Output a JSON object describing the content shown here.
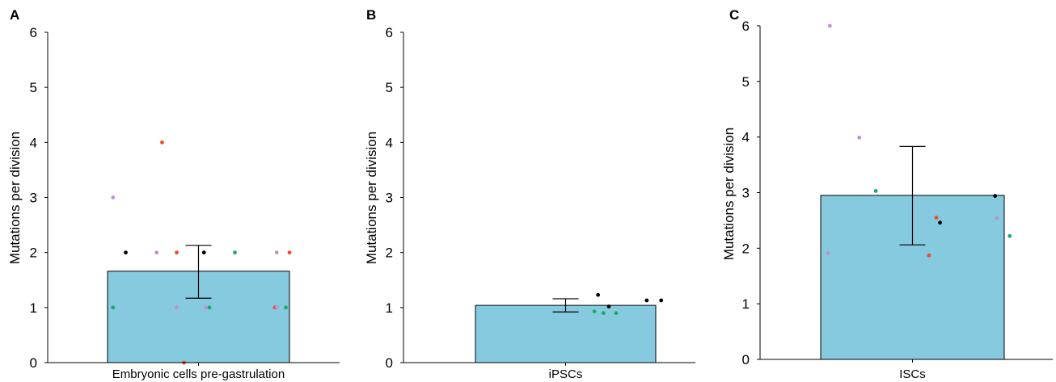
{
  "colors": {
    "bar_fill": "#86CAE0",
    "black": "#000000",
    "green": "#1AAA68",
    "red": "#F04A24",
    "purple": "#C08FD6"
  },
  "chart_data": [
    {
      "type": "bar",
      "panel_label": "A",
      "categories": [
        "Embryonic cells pre-gastrulation"
      ],
      "values": [
        1.66
      ],
      "error": {
        "low": 1.17,
        "high": 2.13
      },
      "ylabel": "Mutations per division",
      "ylim": [
        0,
        6
      ],
      "yticks": [
        "0",
        "1",
        "2",
        "3",
        "4",
        "5",
        "6"
      ],
      "grid": false,
      "points": [
        {
          "x": 0.03,
          "y": 3,
          "color": "purple"
        },
        {
          "x": 0.03,
          "y": 1,
          "color": "green"
        },
        {
          "x": 0.1,
          "y": 2,
          "color": "black"
        },
        {
          "x": 0.27,
          "y": 2,
          "color": "purple"
        },
        {
          "x": 0.3,
          "y": 4,
          "color": "red"
        },
        {
          "x": 0.38,
          "y": 2,
          "color": "red"
        },
        {
          "x": 0.38,
          "y": 1,
          "color": "purple"
        },
        {
          "x": 0.42,
          "y": 0,
          "color": "red"
        },
        {
          "x": 0.53,
          "y": 2,
          "color": "black"
        },
        {
          "x": 0.54,
          "y": 1,
          "color": "purple"
        },
        {
          "x": 0.56,
          "y": 1,
          "color": "green"
        },
        {
          "x": 0.7,
          "y": 2,
          "color": "green"
        },
        {
          "x": 0.92,
          "y": 1,
          "color": "red"
        },
        {
          "x": 0.93,
          "y": 1,
          "color": "purple"
        },
        {
          "x": 0.93,
          "y": 2,
          "color": "purple"
        },
        {
          "x": 0.98,
          "y": 1,
          "color": "green"
        },
        {
          "x": 1.0,
          "y": 2,
          "color": "red"
        }
      ]
    },
    {
      "type": "bar",
      "panel_label": "B",
      "categories": [
        "iPSCs"
      ],
      "values": [
        1.04
      ],
      "error": {
        "low": 0.92,
        "high": 1.16
      },
      "ylabel": "Mutations per division",
      "ylim": [
        0,
        6
      ],
      "yticks": [
        "0",
        "1",
        "2",
        "3",
        "4",
        "5",
        "6"
      ],
      "grid": false,
      "points": [
        {
          "x": 0.68,
          "y": 1.23,
          "color": "black"
        },
        {
          "x": 0.66,
          "y": 0.93,
          "color": "green"
        },
        {
          "x": 0.71,
          "y": 0.9,
          "color": "green"
        },
        {
          "x": 0.74,
          "y": 1.02,
          "color": "black"
        },
        {
          "x": 0.78,
          "y": 0.9,
          "color": "green"
        },
        {
          "x": 0.95,
          "y": 1.13,
          "color": "black"
        },
        {
          "x": 1.03,
          "y": 1.13,
          "color": "black"
        }
      ]
    },
    {
      "type": "bar",
      "panel_label": "C",
      "categories": [
        "ISCs"
      ],
      "values": [
        2.95
      ],
      "error": {
        "low": 2.06,
        "high": 3.83
      },
      "ylabel": "Mutations per division",
      "ylim": [
        0,
        6
      ],
      "yticks": [
        "0",
        "1",
        "2",
        "3",
        "4",
        "5",
        "6"
      ],
      "grid": false,
      "points": [
        {
          "x": 0.05,
          "y": 6.0,
          "color": "purple"
        },
        {
          "x": 0.21,
          "y": 3.99,
          "color": "purple"
        },
        {
          "x": 0.3,
          "y": 3.03,
          "color": "green"
        },
        {
          "x": 0.04,
          "y": 1.91,
          "color": "purple"
        },
        {
          "x": 0.63,
          "y": 2.55,
          "color": "red"
        },
        {
          "x": 0.65,
          "y": 2.46,
          "color": "black"
        },
        {
          "x": 0.59,
          "y": 1.87,
          "color": "red"
        },
        {
          "x": 0.95,
          "y": 2.94,
          "color": "black"
        },
        {
          "x": 0.96,
          "y": 2.54,
          "color": "purple"
        },
        {
          "x": 1.03,
          "y": 2.22,
          "color": "green"
        }
      ]
    }
  ]
}
